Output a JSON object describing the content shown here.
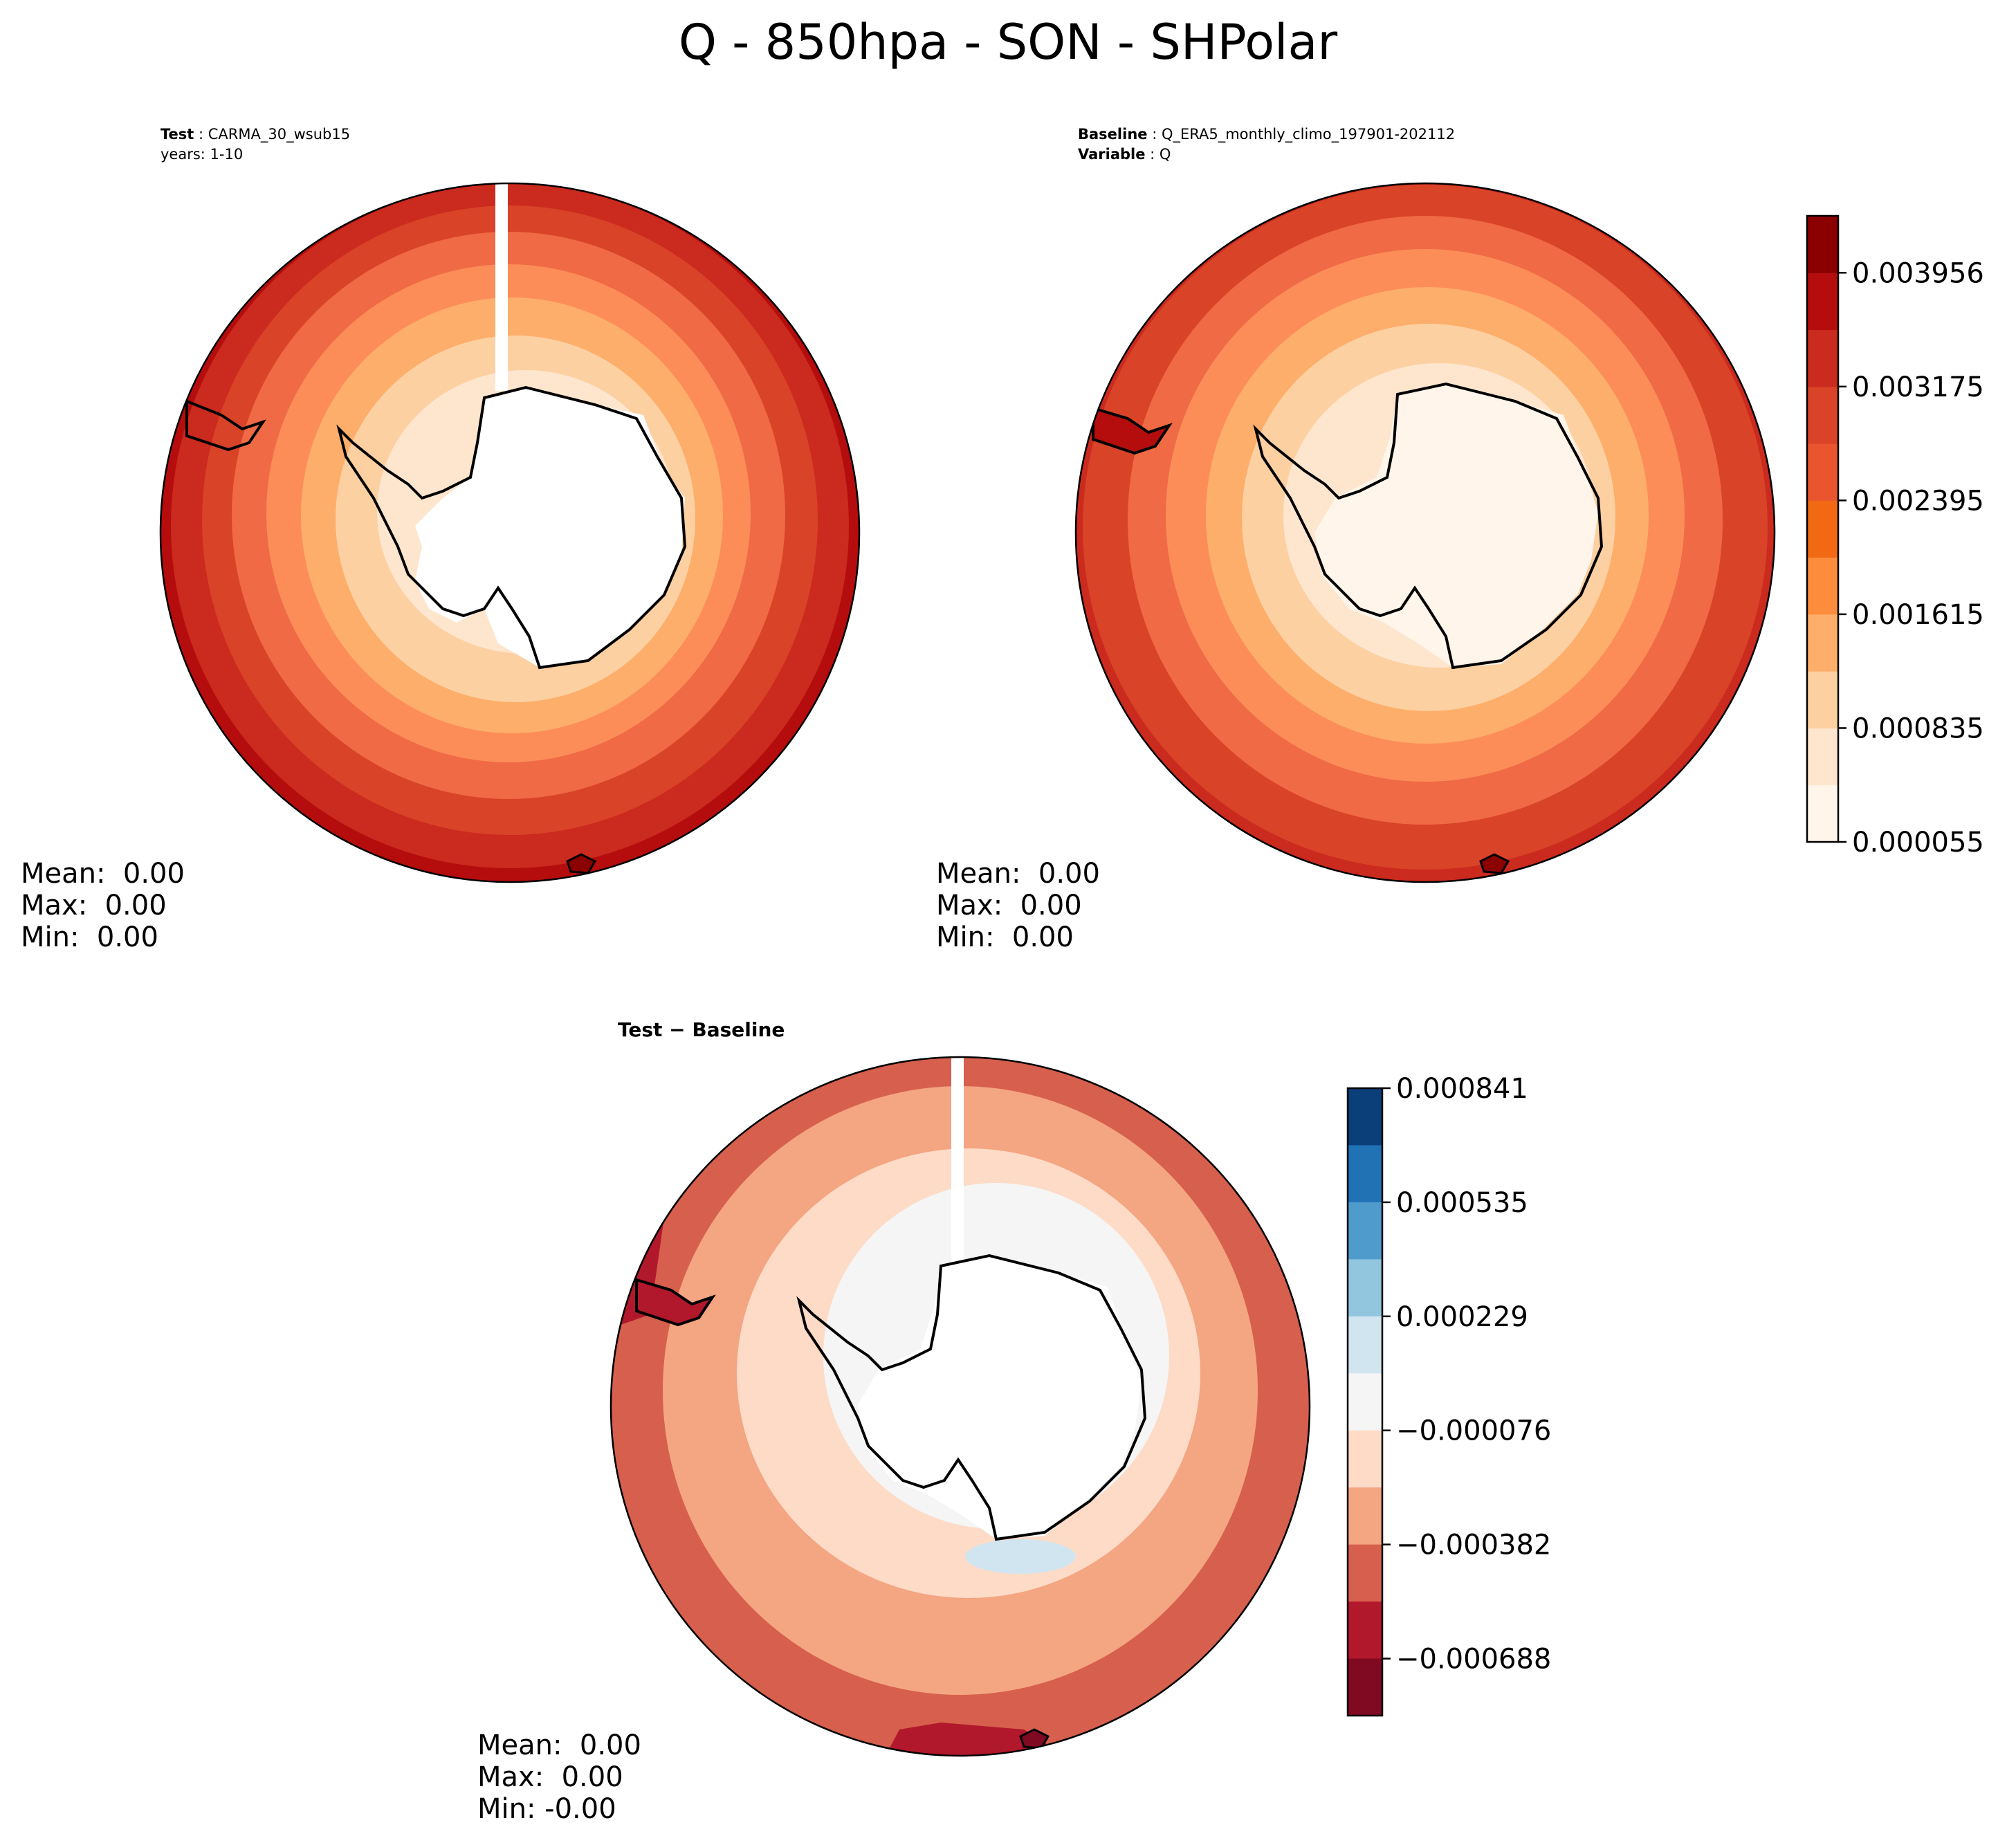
{
  "title": "Q - 850hpa - SON - SHPolar",
  "test_panel": {
    "label_bold": "Test",
    "label_value": "CARMA_30_wsub15",
    "years": "years: 1-10",
    "stats": {
      "mean": "Mean:  0.00",
      "max": "Max:  0.00",
      "min": "Min:  0.00"
    }
  },
  "baseline_panel": {
    "label_bold": "Baseline",
    "label_value": "Q_ERA5_monthly_climo_197901-202112",
    "variable_bold": "Variable",
    "variable_value": "Q",
    "stats": {
      "mean": "Mean:  0.00",
      "max": "Max:  0.00",
      "min": "Min:  0.00"
    }
  },
  "diff_panel": {
    "title": "Test − Baseline",
    "stats": {
      "mean": "Mean:  0.00",
      "max": "Max:  0.00",
      "min": "Min: -0.00"
    }
  },
  "colorbar_main": {
    "ticks": [
      "0.000055",
      "0.000835",
      "0.001615",
      "0.002395",
      "0.003175",
      "0.003956"
    ],
    "colors": [
      "#fff5eb",
      "#fee6ce",
      "#fdd0a2",
      "#fdae6b",
      "#fd8d3c",
      "#f16913",
      "#e8552e",
      "#d94328",
      "#cb2a1e",
      "#b50d0d",
      "#8b0000"
    ]
  },
  "colorbar_diff": {
    "ticks": [
      "0.000841",
      "0.000535",
      "0.000229",
      "−0.000076",
      "−0.000382",
      "−0.000688"
    ],
    "colors": [
      "#0b3f7a",
      "#2171b5",
      "#4f9bcc",
      "#92c5de",
      "#d1e5f0",
      "#f5f5f5",
      "#fddbc7",
      "#f4a582",
      "#d6604d",
      "#b2182b",
      "#7f0a21"
    ]
  }
}
